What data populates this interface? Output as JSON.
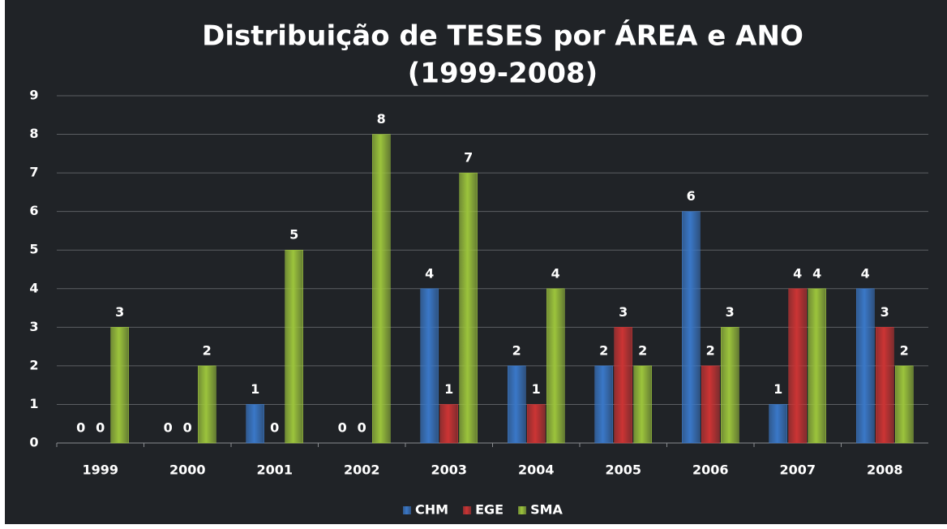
{
  "chart_data": {
    "type": "bar",
    "title": "Distribuição de TESES por ÁREA e ANO",
    "subtitle": "(1999-2008)",
    "categories": [
      "1999",
      "2000",
      "2001",
      "2002",
      "2003",
      "2004",
      "2005",
      "2006",
      "2007",
      "2008"
    ],
    "series": [
      {
        "name": "CHM",
        "color": "#3a78c8",
        "values": [
          0,
          0,
          1,
          0,
          4,
          2,
          2,
          6,
          1,
          4
        ]
      },
      {
        "name": "EGE",
        "color": "#cc3434",
        "values": [
          0,
          0,
          0,
          0,
          1,
          1,
          3,
          2,
          4,
          3
        ]
      },
      {
        "name": "SMA",
        "color": "#9cc43c",
        "values": [
          3,
          2,
          5,
          8,
          7,
          4,
          2,
          3,
          4,
          2
        ]
      }
    ],
    "ylim": [
      0,
      9
    ],
    "yticks": [
      0,
      1,
      2,
      3,
      4,
      5,
      6,
      7,
      8,
      9
    ],
    "grid": true,
    "legend": "bottom"
  }
}
